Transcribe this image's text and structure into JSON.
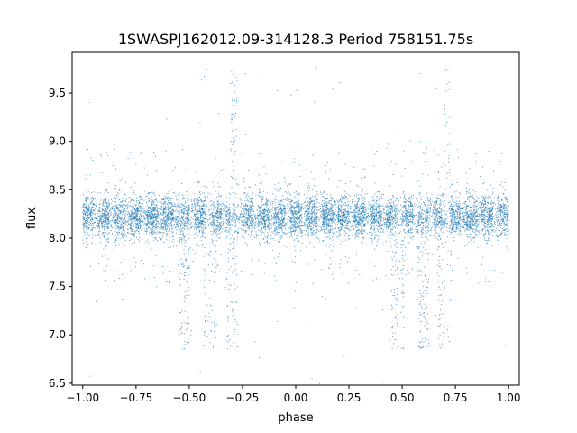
{
  "chart_data": {
    "type": "scatter",
    "title": "1SWASPJ162012.09-314128.3 Period 758151.75s",
    "xlabel": "phase",
    "ylabel": "flux",
    "xlim": [
      -1.05,
      1.05
    ],
    "ylim": [
      6.48,
      9.92
    ],
    "x_ticks": [
      -1.0,
      -0.75,
      -0.5,
      -0.25,
      0.0,
      0.25,
      0.5,
      0.75,
      1.0
    ],
    "x_tick_labels": [
      "−1.00",
      "−0.75",
      "−0.50",
      "−0.25",
      "0.00",
      "0.25",
      "0.50",
      "0.75",
      "1.00"
    ],
    "y_ticks": [
      6.5,
      7.0,
      7.5,
      8.0,
      8.5,
      9.0,
      9.5
    ],
    "y_tick_labels": [
      "6.5",
      "7.0",
      "7.5",
      "8.0",
      "8.5",
      "9.0",
      "9.5"
    ],
    "grid": false,
    "legend": "none",
    "point_color": "#1f77b4",
    "baseline_flux": 8.22,
    "scatter_spread": 0.2,
    "dip_phases": [
      -0.52,
      -0.4,
      -0.3,
      0.48,
      0.6,
      0.7
    ],
    "dip_min_flux": 6.7,
    "spike_phases": [
      -0.29,
      0.71
    ],
    "spike_max_flux": 9.75,
    "data_phase_range": [
      -1.0,
      1.0
    ],
    "approx_point_count": 9000
  }
}
